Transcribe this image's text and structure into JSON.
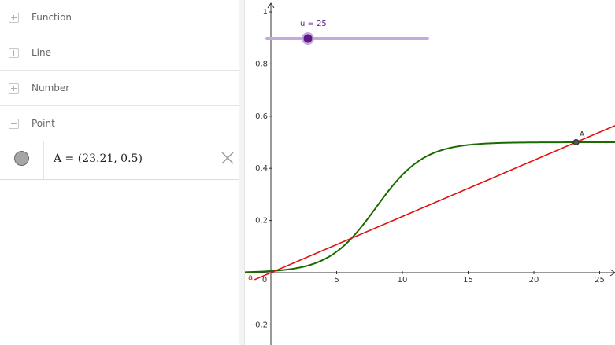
{
  "algebra": {
    "categories": [
      {
        "label": "Function",
        "expanded": false
      },
      {
        "label": "Line",
        "expanded": false
      },
      {
        "label": "Number",
        "expanded": false
      },
      {
        "label": "Point",
        "expanded": true
      }
    ],
    "point_item": {
      "text": "A = (23.21, 0.5)",
      "marker_color": "#a6a6a6"
    }
  },
  "graph": {
    "slider": {
      "label": "u = 25",
      "value": 25,
      "min": 0,
      "max": 100,
      "color": "#7b2fa0"
    },
    "x_ticks": [
      "0",
      "5",
      "10",
      "15",
      "20",
      "25"
    ],
    "y_ticks": [
      "1",
      "0.8",
      "0.6",
      "0.4",
      "0.2",
      "−0.2"
    ],
    "point": {
      "label": "A",
      "x": 23.21,
      "y": 0.5
    },
    "line": {
      "label": "a",
      "color": "#e01010"
    },
    "curve": {
      "color": "#1a6b00"
    }
  }
}
